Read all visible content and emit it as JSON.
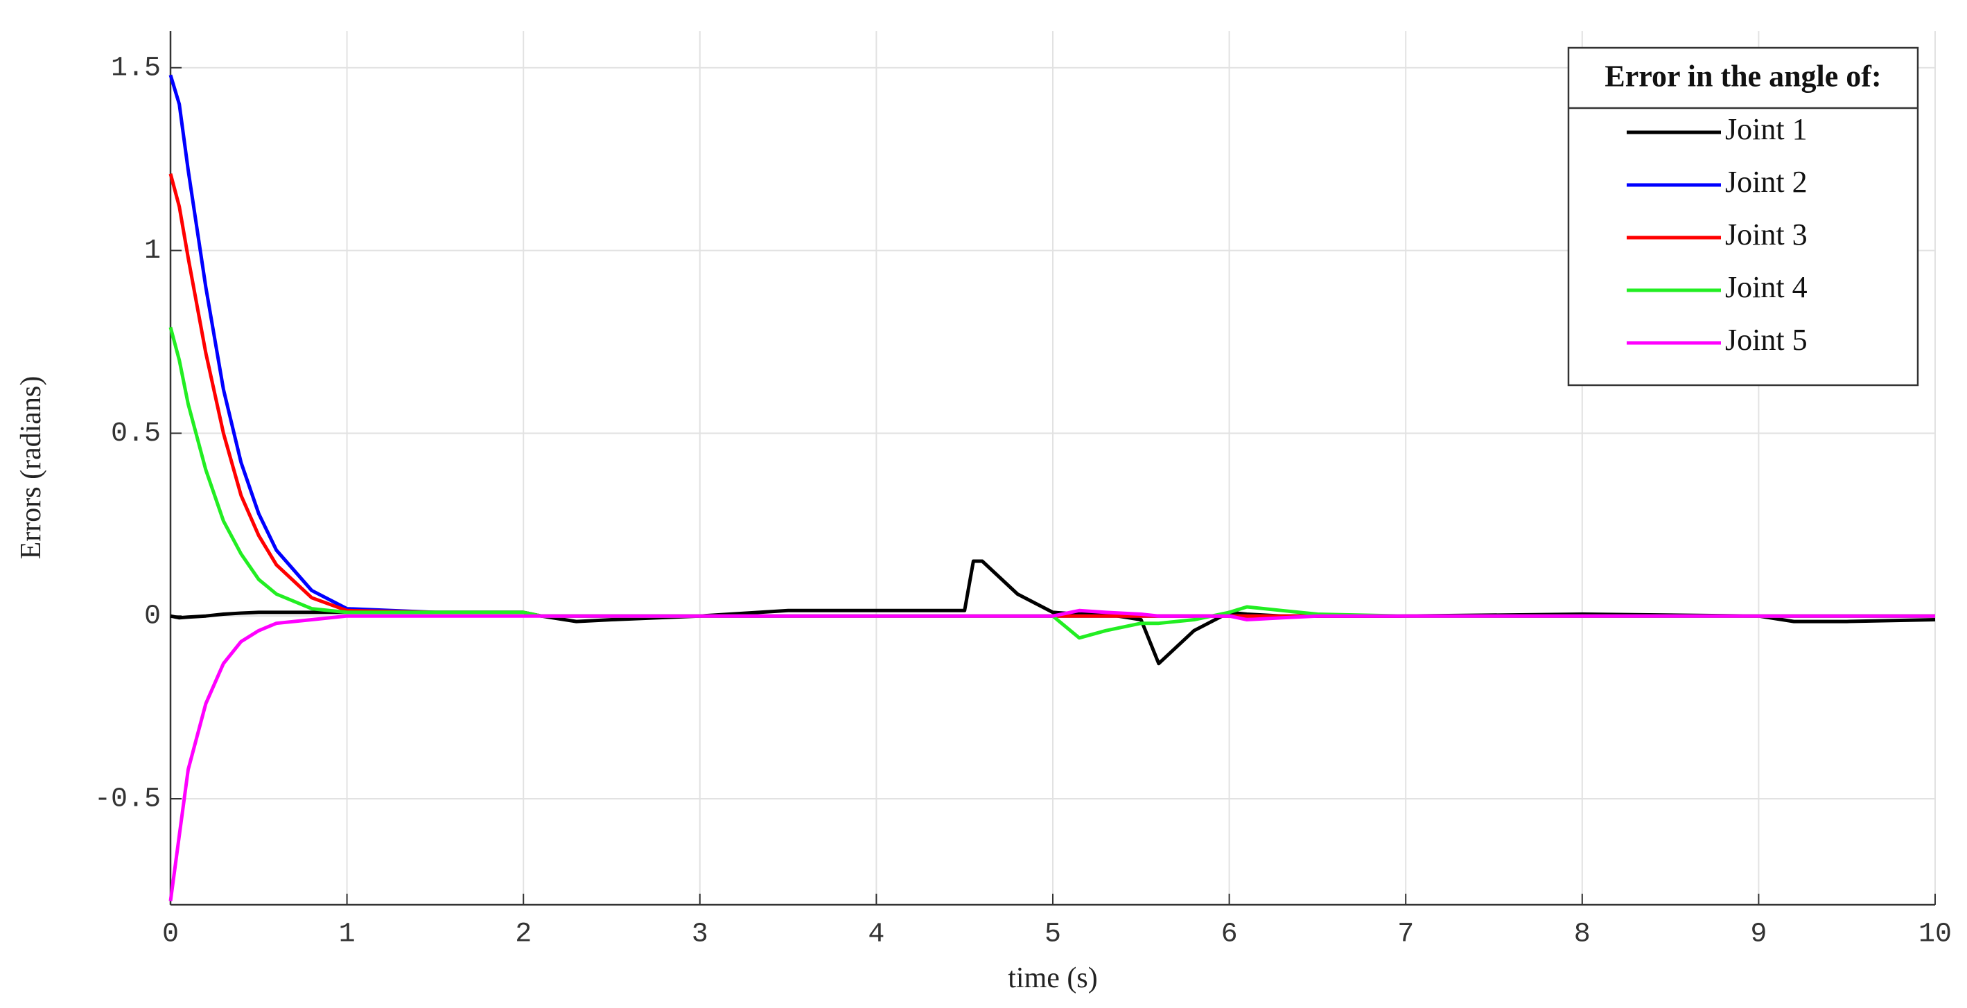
{
  "chart_data": {
    "type": "line",
    "xlabel": "time (s)",
    "ylabel": "Errors (radians)",
    "legend_title": "Error in the angle of:",
    "legend": "upper right",
    "grid": true,
    "xlim": [
      0,
      10
    ],
    "ylim": [
      -0.79,
      1.6
    ],
    "xticks": [
      0,
      1,
      2,
      3,
      4,
      5,
      6,
      7,
      8,
      9,
      10
    ],
    "yticks": [
      -0.5,
      0,
      0.5,
      1,
      1.5
    ],
    "x": [
      0,
      0.05,
      0.1,
      0.2,
      0.3,
      0.4,
      0.5,
      0.6,
      0.8,
      1,
      1.5,
      2,
      2.1,
      2.3,
      2.5,
      3,
      3.5,
      4,
      4.5,
      4.55,
      4.6,
      4.8,
      5,
      5.15,
      5.3,
      5.5,
      5.6,
      5.8,
      6,
      6.1,
      6.3,
      6.5,
      7,
      8,
      9,
      9.2,
      9.5,
      10
    ],
    "series": [
      {
        "name": "Joint 1",
        "color": "#000000",
        "values": [
          0,
          -0.005,
          -0.003,
          0,
          0.005,
          0.008,
          0.01,
          0.01,
          0.01,
          0.01,
          0.01,
          0.01,
          0,
          -0.015,
          -0.01,
          0,
          0.015,
          0.015,
          0.015,
          0.15,
          0.15,
          0.06,
          0.01,
          0.005,
          0.005,
          -0.01,
          -0.13,
          -0.04,
          0.01,
          0.005,
          0,
          0,
          0,
          0.005,
          0,
          -0.015,
          -0.015,
          -0.01
        ]
      },
      {
        "name": "Joint 2",
        "color": "#0000ff",
        "values": [
          1.48,
          1.4,
          1.22,
          0.9,
          0.62,
          0.42,
          0.28,
          0.18,
          0.07,
          0.02,
          0.01,
          0.01,
          0,
          0,
          0,
          0,
          0,
          0,
          0,
          0,
          0,
          0,
          0,
          0,
          0,
          0,
          0,
          0,
          0,
          0,
          0,
          0,
          0,
          0,
          0,
          0,
          0,
          0
        ]
      },
      {
        "name": "Joint 3",
        "color": "#ff0000",
        "values": [
          1.21,
          1.12,
          0.98,
          0.72,
          0.5,
          0.33,
          0.22,
          0.14,
          0.05,
          0.015,
          0.01,
          0.01,
          0,
          0,
          0,
          0,
          0,
          0,
          0,
          0,
          0,
          0,
          0,
          0,
          0,
          0,
          0,
          0,
          0,
          0,
          0,
          0,
          0,
          0,
          0,
          0,
          0,
          0
        ]
      },
      {
        "name": "Joint 4",
        "color": "#22ee22",
        "values": [
          0.79,
          0.7,
          0.58,
          0.4,
          0.26,
          0.17,
          0.1,
          0.06,
          0.02,
          0.01,
          0.01,
          0.01,
          0,
          0,
          0,
          0,
          0,
          0,
          0,
          0,
          0,
          0,
          0,
          -0.06,
          -0.04,
          -0.02,
          -0.02,
          -0.01,
          0.01,
          0.025,
          0.015,
          0.005,
          0,
          0,
          0,
          0,
          0,
          0
        ]
      },
      {
        "name": "Joint 5",
        "color": "#ff00ff",
        "values": [
          -0.78,
          -0.6,
          -0.42,
          -0.24,
          -0.13,
          -0.07,
          -0.04,
          -0.02,
          -0.01,
          0,
          0,
          0,
          0,
          0,
          0,
          0,
          0,
          0,
          0,
          0,
          0,
          0,
          0,
          0.015,
          0.01,
          0.005,
          0,
          0,
          0,
          -0.01,
          -0.005,
          0,
          0,
          0,
          0,
          0,
          0,
          0
        ]
      }
    ]
  }
}
